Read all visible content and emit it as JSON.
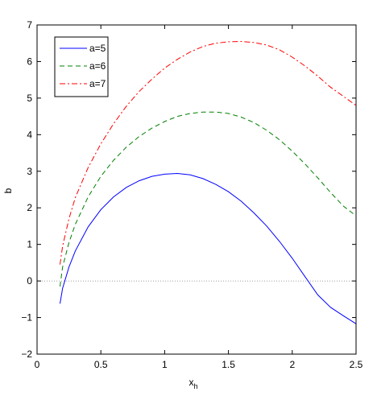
{
  "chart_data": {
    "type": "line",
    "title": "",
    "xlabel": "x",
    "xlabel_sub": "h",
    "ylabel": "b",
    "xlim": [
      0,
      2.5
    ],
    "ylim": [
      -2,
      7
    ],
    "x_ticks": [
      0,
      0.5,
      1,
      1.5,
      2,
      2.5
    ],
    "x_tick_labels": [
      "0",
      "0.5",
      "1",
      "1.5",
      "2",
      "2.5"
    ],
    "y_ticks": [
      -2,
      -1,
      0,
      1,
      2,
      3,
      4,
      5,
      6,
      7
    ],
    "y_tick_labels": [
      "−2",
      "−1",
      "0",
      "1",
      "2",
      "3",
      "4",
      "5",
      "6",
      "7"
    ],
    "grid": false,
    "legend_position": "top-left",
    "reference_line": {
      "y": 0,
      "style": "dotted",
      "color": "#808080"
    },
    "series": [
      {
        "name": "a=5",
        "color": "#0000ff",
        "dash": "solid",
        "x": [
          0.18,
          0.2,
          0.25,
          0.3,
          0.4,
          0.5,
          0.6,
          0.7,
          0.8,
          0.9,
          1.0,
          1.1,
          1.2,
          1.3,
          1.4,
          1.5,
          1.6,
          1.7,
          1.8,
          1.9,
          2.0,
          2.1,
          2.2,
          2.3,
          2.4,
          2.5
        ],
        "y": [
          -0.62,
          -0.2,
          0.38,
          0.82,
          1.48,
          1.95,
          2.3,
          2.56,
          2.74,
          2.86,
          2.92,
          2.94,
          2.9,
          2.8,
          2.64,
          2.44,
          2.18,
          1.86,
          1.5,
          1.08,
          0.62,
          0.12,
          -0.38,
          -0.72,
          -0.95,
          -1.17
        ]
      },
      {
        "name": "a=6",
        "color": "#008000",
        "dash": "dashed",
        "x": [
          0.18,
          0.2,
          0.25,
          0.3,
          0.4,
          0.5,
          0.6,
          0.7,
          0.8,
          0.9,
          1.0,
          1.1,
          1.2,
          1.3,
          1.4,
          1.5,
          1.6,
          1.7,
          1.8,
          1.9,
          2.0,
          2.1,
          2.2,
          2.3,
          2.4,
          2.5
        ],
        "y": [
          -0.15,
          0.38,
          1.05,
          1.55,
          2.3,
          2.86,
          3.3,
          3.66,
          3.95,
          4.18,
          4.36,
          4.5,
          4.58,
          4.62,
          4.62,
          4.58,
          4.48,
          4.33,
          4.12,
          3.86,
          3.55,
          3.2,
          2.82,
          2.42,
          2.05,
          1.78
        ]
      },
      {
        "name": "a=7",
        "color": "#ff0000",
        "dash": "dashdot",
        "x": [
          0.18,
          0.2,
          0.25,
          0.3,
          0.4,
          0.5,
          0.6,
          0.7,
          0.8,
          0.9,
          1.0,
          1.1,
          1.2,
          1.3,
          1.4,
          1.5,
          1.6,
          1.7,
          1.8,
          1.9,
          2.0,
          2.1,
          2.2,
          2.3,
          2.4,
          2.5
        ],
        "y": [
          0.45,
          0.95,
          1.7,
          2.28,
          3.1,
          3.75,
          4.3,
          4.78,
          5.18,
          5.52,
          5.82,
          6.06,
          6.26,
          6.41,
          6.5,
          6.54,
          6.55,
          6.52,
          6.45,
          6.32,
          6.12,
          5.88,
          5.6,
          5.3,
          5.05,
          4.8
        ]
      }
    ]
  }
}
